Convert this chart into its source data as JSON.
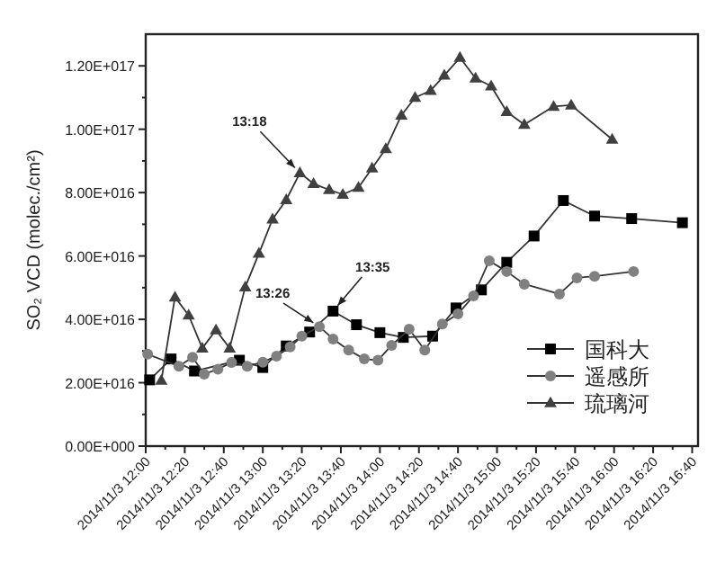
{
  "chart_data": {
    "type": "line",
    "ylabel": "SO₂ VCD (molec./cm²)",
    "line_style": "solid",
    "legend": "bottom right",
    "grid": false,
    "xlim": [
      "2014-11-03T12:00",
      "2014-11-03T16:43"
    ],
    "xticks": [
      {
        "value": "2014-11-03T12:00",
        "label": "2014/11/3 12:00"
      },
      {
        "value": "2014-11-03T12:20",
        "label": "2014/11/3 12:20"
      },
      {
        "value": "2014-11-03T12:40",
        "label": "2014/11/3 12:40"
      },
      {
        "value": "2014-11-03T13:00",
        "label": "2014/11/3 13:00"
      },
      {
        "value": "2014-11-03T13:20",
        "label": "2014/11/3 13:20"
      },
      {
        "value": "2014-11-03T13:40",
        "label": "2014/11/3 13:40"
      },
      {
        "value": "2014-11-03T14:00",
        "label": "2014/11/3 14:00"
      },
      {
        "value": "2014-11-03T14:20",
        "label": "2014/11/3 14:20"
      },
      {
        "value": "2014-11-03T14:40",
        "label": "2014/11/3 14:40"
      },
      {
        "value": "2014-11-03T15:00",
        "label": "2014/11/3 15:00"
      },
      {
        "value": "2014-11-03T15:20",
        "label": "2014/11/3 15:20"
      },
      {
        "value": "2014-11-03T15:40",
        "label": "2014/11/3 15:40"
      },
      {
        "value": "2014-11-03T16:00",
        "label": "2014/11/3 16:00"
      },
      {
        "value": "2014-11-03T16:20",
        "label": "2014/11/3 16:20"
      },
      {
        "value": "2014-11-03T16:40",
        "label": "2014/11/3 16:40"
      }
    ],
    "ylim": [
      0,
      1.3e+17
    ],
    "yticks": [
      {
        "value": 0,
        "label": "0.00E+000"
      },
      {
        "value": 2e+16,
        "label": "2.00E+016"
      },
      {
        "value": 4e+16,
        "label": "4.00E+016"
      },
      {
        "value": 6e+16,
        "label": "6.00E+016"
      },
      {
        "value": 8e+16,
        "label": "8.00E+016"
      },
      {
        "value": 1e+17,
        "label": "1.00E+017"
      },
      {
        "value": 1.2e+17,
        "label": "1.20E+017"
      }
    ],
    "annotations": [
      {
        "text": "13:18",
        "x": "2014-11-03T13:19",
        "y": 8.62e+16
      },
      {
        "text": "13:26",
        "x": "2014-11-03T13:29",
        "y": 3.77e+16
      },
      {
        "text": "13:35",
        "x": "2014-11-03T13:36",
        "y": 4.26e+16
      }
    ],
    "series": [
      {
        "name": "国科大",
        "color": "#000000",
        "marker": "square",
        "x": [
          "2014-11-03T12:02",
          "2014-11-03T12:13",
          "2014-11-03T12:25",
          "2014-11-03T12:48",
          "2014-11-03T13:00",
          "2014-11-03T13:12",
          "2014-11-03T13:24",
          "2014-11-03T13:36",
          "2014-11-03T13:48",
          "2014-11-03T14:00",
          "2014-11-03T14:12",
          "2014-11-03T14:27",
          "2014-11-03T14:39",
          "2014-11-03T14:52",
          "2014-11-03T15:05",
          "2014-11-03T15:19",
          "2014-11-03T15:34",
          "2014-11-03T15:50",
          "2014-11-03T16:09",
          "2014-11-03T16:35"
        ],
        "values": [
          2.09e+16,
          2.75e+16,
          2.37e+16,
          2.71e+16,
          2.48e+16,
          3.16e+16,
          3.6e+16,
          4.26e+16,
          3.83e+16,
          3.58e+16,
          3.43e+16,
          3.47e+16,
          4.36e+16,
          4.93e+16,
          5.8e+16,
          6.63e+16,
          7.75e+16,
          7.26e+16,
          7.18e+16,
          7.05e+16
        ]
      },
      {
        "name": "遥感所",
        "color": "#808080",
        "marker": "circle",
        "x": [
          "2014-11-03T12:01",
          "2014-11-03T12:17",
          "2014-11-03T12:24",
          "2014-11-03T12:30",
          "2014-11-03T12:37",
          "2014-11-03T12:44",
          "2014-11-03T12:52",
          "2014-11-03T13:00",
          "2014-11-03T13:07",
          "2014-11-03T13:14",
          "2014-11-03T13:20",
          "2014-11-03T13:29",
          "2014-11-03T13:36",
          "2014-11-03T13:44",
          "2014-11-03T13:52",
          "2014-11-03T13:59",
          "2014-11-03T14:06",
          "2014-11-03T14:15",
          "2014-11-03T14:23",
          "2014-11-03T14:32",
          "2014-11-03T14:40",
          "2014-11-03T14:48",
          "2014-11-03T14:56",
          "2014-11-03T15:05",
          "2014-11-03T15:14",
          "2014-11-03T15:32",
          "2014-11-03T15:41",
          "2014-11-03T15:50",
          "2014-11-03T16:10"
        ],
        "values": [
          2.9e+16,
          2.52e+16,
          2.8e+16,
          2.27e+16,
          2.43e+16,
          2.64e+16,
          2.52e+16,
          2.65e+16,
          2.84e+16,
          3.13e+16,
          3.47e+16,
          3.77e+16,
          3.38e+16,
          3.03e+16,
          2.75e+16,
          2.71e+16,
          3.18e+16,
          3.69e+16,
          3.03e+16,
          3.85e+16,
          4.17e+16,
          4.74e+16,
          5.85e+16,
          5.51e+16,
          5.11e+16,
          4.8e+16,
          5.31e+16,
          5.36e+16,
          5.51e+16
        ]
      },
      {
        "name": "琉璃河",
        "color": "#404040",
        "marker": "triangle",
        "x": [
          "2014-11-03T12:08",
          "2014-11-03T12:15",
          "2014-11-03T12:22",
          "2014-11-03T12:29",
          "2014-11-03T12:36",
          "2014-11-03T12:43",
          "2014-11-03T12:51",
          "2014-11-03T12:58",
          "2014-11-03T13:05",
          "2014-11-03T13:12",
          "2014-11-03T13:19",
          "2014-11-03T13:26",
          "2014-11-03T13:34",
          "2014-11-03T13:41",
          "2014-11-03T13:49",
          "2014-11-03T13:56",
          "2014-11-03T14:03",
          "2014-11-03T14:11",
          "2014-11-03T14:18",
          "2014-11-03T14:26",
          "2014-11-03T14:33",
          "2014-11-03T14:41",
          "2014-11-03T14:49",
          "2014-11-03T14:57",
          "2014-11-03T15:05",
          "2014-11-03T15:14",
          "2014-11-03T15:29",
          "2014-11-03T15:38",
          "2014-11-03T15:59"
        ],
        "values": [
          2.07e+16,
          4.7e+16,
          4.13e+16,
          3.09e+16,
          3.66e+16,
          3.09e+16,
          5.02e+16,
          6.08e+16,
          7.16e+16,
          7.77e+16,
          8.62e+16,
          8.28e+16,
          8.09e+16,
          7.94e+16,
          8.16e+16,
          8.77e+16,
          9.38e+16,
          1.044e+17,
          1.1e+17,
          1.122e+17,
          1.17e+17,
          1.226e+17,
          1.161e+17,
          1.136e+17,
          1.055e+17,
          1.015e+17,
          1.072e+17,
          1.076e+17,
          9.68e+16
        ]
      }
    ]
  }
}
